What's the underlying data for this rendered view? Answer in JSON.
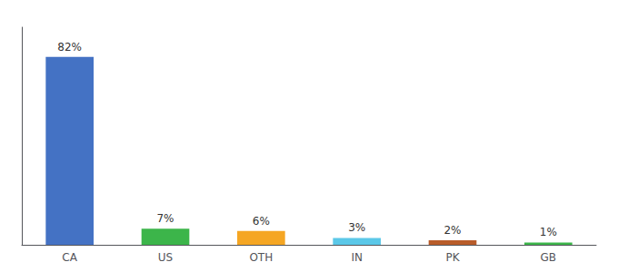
{
  "chart_data": {
    "type": "bar",
    "categories": [
      "CA",
      "US",
      "OTH",
      "IN",
      "PK",
      "GB"
    ],
    "values": [
      82,
      7,
      6,
      3,
      2,
      1
    ],
    "value_labels": [
      "82%",
      "7%",
      "6%",
      "3%",
      "2%",
      "1%"
    ],
    "colors": [
      "#4472c4",
      "#3cb54a",
      "#f5a623",
      "#5bc8e8",
      "#b85c2a",
      "#3cb54a"
    ],
    "ylim": [
      0,
      95
    ],
    "grid": false,
    "data_labels": true,
    "tick_labels": "x"
  }
}
